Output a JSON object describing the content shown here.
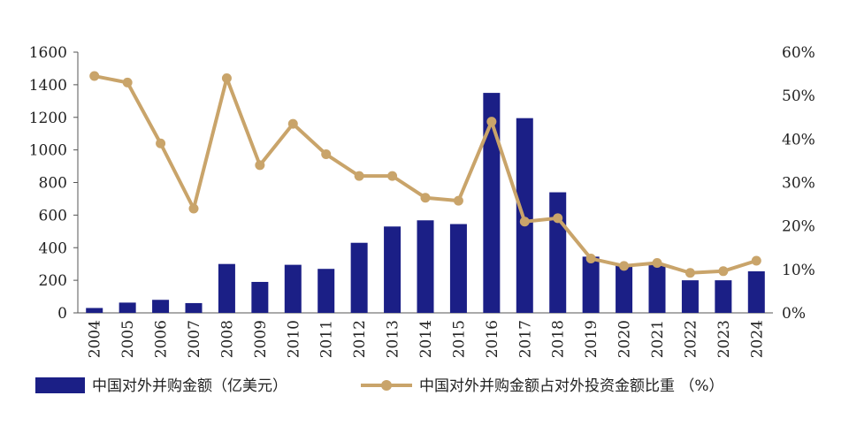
{
  "chart_data": {
    "type": "bar+line",
    "categories": [
      "2004",
      "2005",
      "2006",
      "2007",
      "2008",
      "2009",
      "2010",
      "2011",
      "2012",
      "2013",
      "2014",
      "2015",
      "2016",
      "2017",
      "2018",
      "2019",
      "2020",
      "2021",
      "2022",
      "2023",
      "2024"
    ],
    "series": [
      {
        "name": "中国对外并购金额（亿美元）",
        "type": "bar",
        "axis": "left",
        "color": "#1b1f86",
        "values": [
          30,
          63,
          80,
          60,
          300,
          190,
          295,
          270,
          430,
          530,
          568,
          545,
          1350,
          1195,
          740,
          345,
          290,
          300,
          200,
          200,
          255
        ]
      },
      {
        "name": "中国对外并购金额占对外投资金额比重 （%）",
        "type": "line",
        "axis": "right",
        "color": "#c9a46a",
        "values": [
          54.5,
          53.0,
          39.0,
          24.0,
          54.0,
          34.0,
          43.5,
          36.5,
          31.5,
          31.5,
          26.5,
          25.8,
          44.0,
          21.0,
          21.8,
          12.5,
          10.8,
          11.5,
          9.2,
          9.6,
          12.0
        ]
      }
    ],
    "left_axis": {
      "ylim": [
        0,
        1600
      ],
      "ticks": [
        "0",
        "200",
        "400",
        "600",
        "800",
        "1000",
        "1200",
        "1400",
        "1600"
      ]
    },
    "right_axis": {
      "ylim": [
        0,
        60
      ],
      "ticks": [
        "0%",
        "10%",
        "20%",
        "30%",
        "40%",
        "50%",
        "60%"
      ]
    },
    "grid": false,
    "legend_placement": "bottom"
  }
}
